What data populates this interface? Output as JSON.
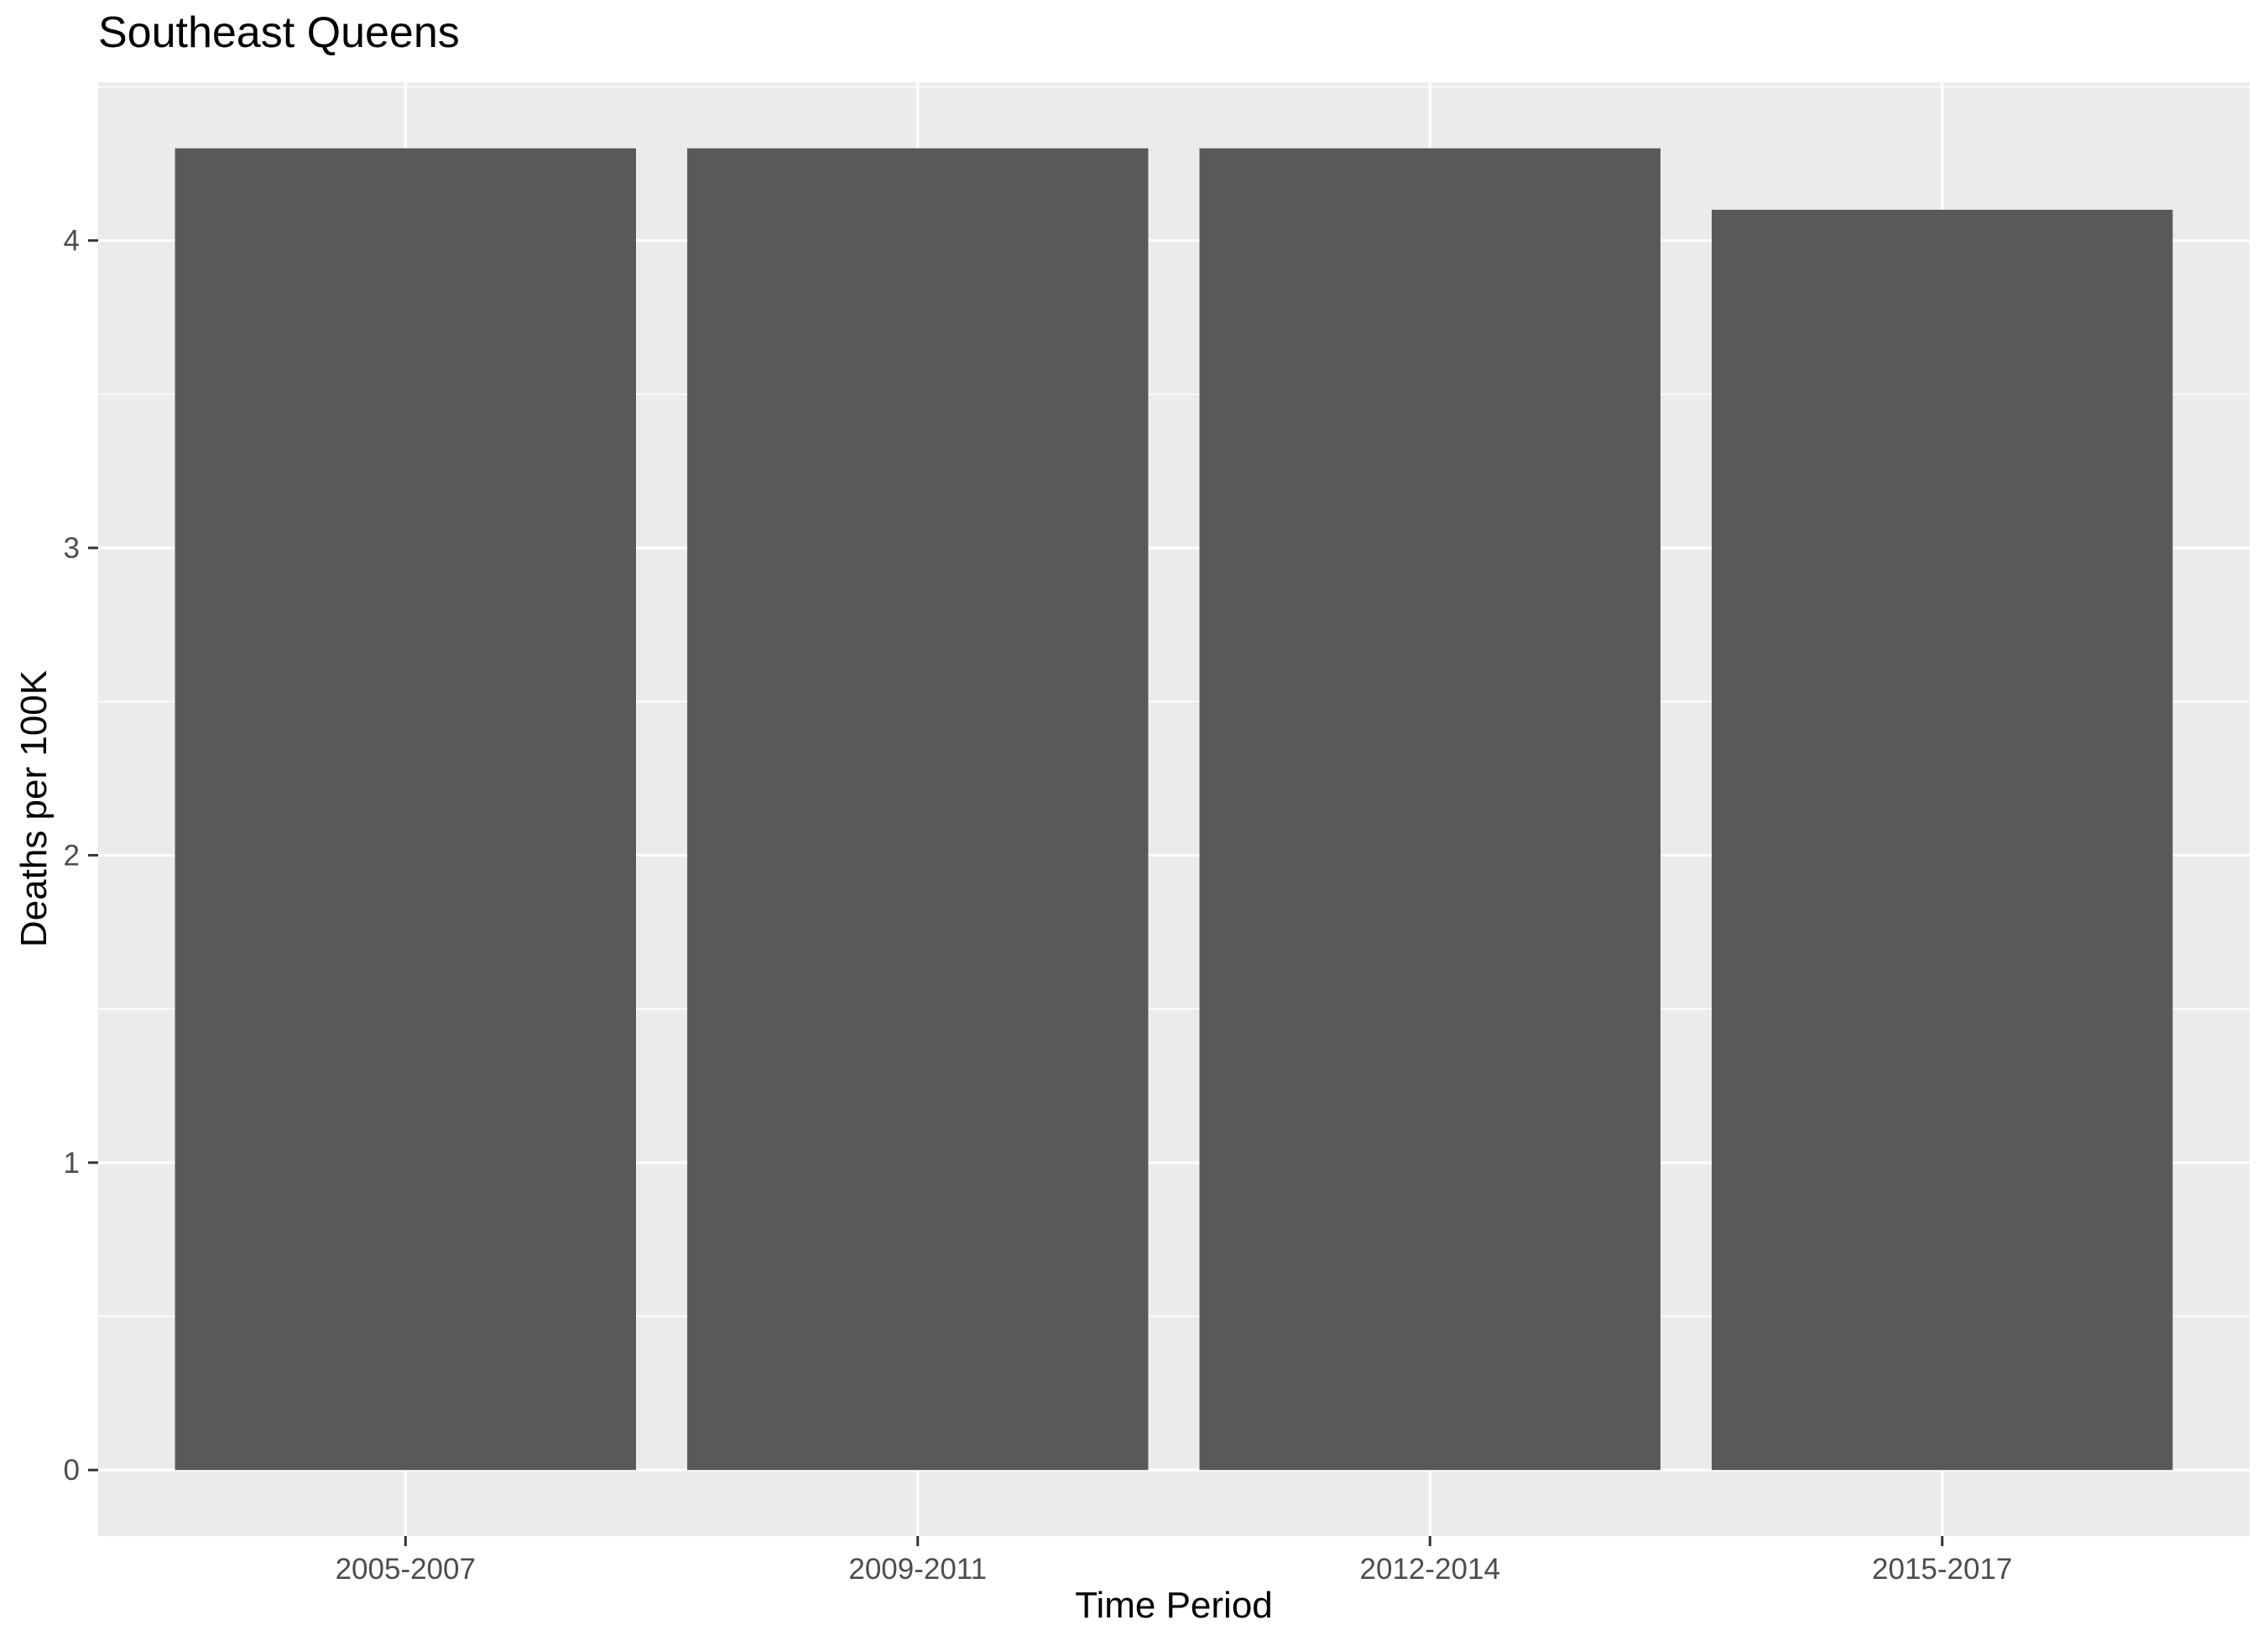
{
  "chart_data": {
    "type": "bar",
    "title": "Southeast Queens",
    "xlabel": "Time Period",
    "ylabel": "Deaths per 100K",
    "categories": [
      "2005-2007",
      "2009-2011",
      "2012-2014",
      "2015-2017"
    ],
    "values": [
      4.3,
      4.3,
      4.3,
      4.1
    ],
    "yticks": [
      0,
      1,
      2,
      3,
      4
    ],
    "ylim": [
      -0.215,
      4.515
    ],
    "grid": true,
    "legend": "none"
  },
  "colors": {
    "panel_background": "#ebebeb",
    "grid_major": "#ffffff",
    "bar_fill": "#595959",
    "tick_text": "#4d4d4d",
    "tick_mark": "#333333"
  }
}
